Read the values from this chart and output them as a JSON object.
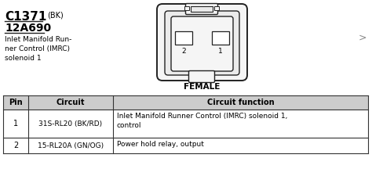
{
  "title_code": "C1371",
  "title_suffix": "(BK)",
  "subtitle": "12A690",
  "description": "Inlet Manifold Run-\nner Control (IMRC)\nsolenoid 1",
  "connector_label": "FEMALE",
  "table_headers": [
    "Pin",
    "Circuit",
    "Circuit function"
  ],
  "table_rows": [
    [
      "1",
      "31S-RL20 (BK/RD)",
      "Inlet Manifold Runner Control (IMRC) solenoid 1,\ncontrol"
    ],
    [
      "2",
      "15-RL20A (GN/OG)",
      "Power hold relay, output"
    ]
  ],
  "bg_color": "#ffffff",
  "text_color": "#000000",
  "line_color": "#222222",
  "header_bg": "#cccccc",
  "table_border_color": "#333333",
  "connector_edge": "#222222",
  "connector_face": "#f5f5f5",
  "connector_inner_face": "#ebebeb"
}
